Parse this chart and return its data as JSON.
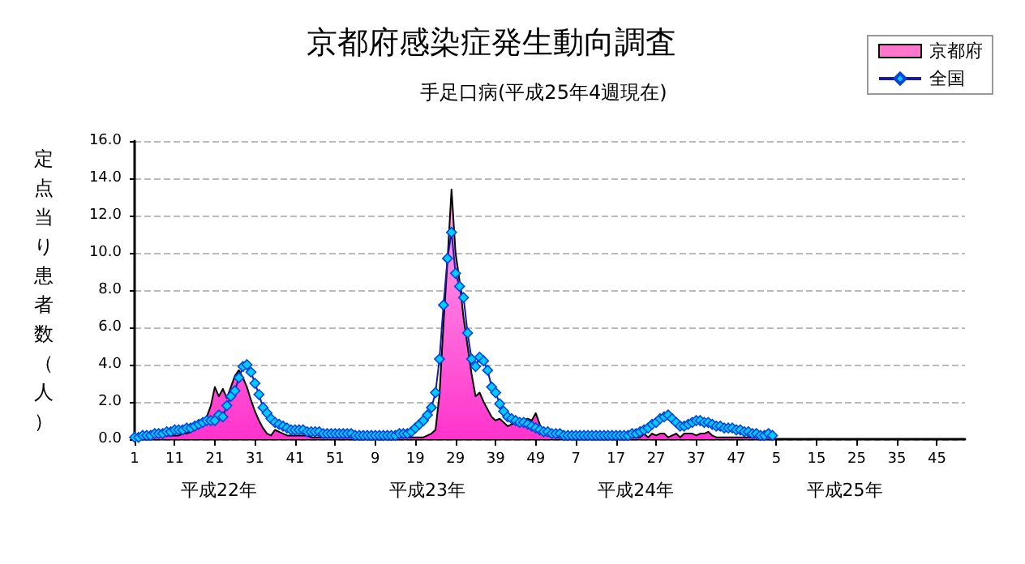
{
  "chart_data": {
    "type": "line",
    "title": "京都府感染症発生動向調査",
    "subtitle": "手足口病(平成25年4週現在)",
    "ylabel": "定点当り患者数（人）",
    "categories": [
      "1",
      null,
      null,
      null,
      null,
      null,
      null,
      null,
      null,
      null,
      "11",
      null,
      null,
      null,
      null,
      null,
      null,
      null,
      null,
      null,
      "21",
      null,
      null,
      null,
      null,
      null,
      null,
      null,
      null,
      null,
      "31",
      null,
      null,
      null,
      null,
      null,
      null,
      null,
      null,
      null,
      "41",
      null,
      null,
      null,
      null,
      null,
      null,
      null,
      null,
      null,
      "51",
      null,
      null,
      null,
      null,
      null,
      null,
      null,
      null,
      null,
      "9",
      null,
      null,
      null,
      null,
      null,
      null,
      null,
      null,
      null,
      "19",
      null,
      null,
      null,
      null,
      null,
      null,
      null,
      null,
      null,
      "29",
      null,
      null,
      null,
      null,
      null,
      null,
      null,
      null,
      null,
      "39",
      null,
      null,
      null,
      null,
      null,
      null,
      null,
      null,
      null,
      "49",
      null,
      null,
      null,
      null,
      null,
      null,
      null,
      null,
      null,
      "7",
      null,
      null,
      null,
      null,
      null,
      null,
      null,
      null,
      null,
      "17",
      null,
      null,
      null,
      null,
      null,
      null,
      null,
      null,
      null,
      "27",
      null,
      null,
      null,
      null,
      null,
      null,
      null,
      null,
      null,
      "37",
      null,
      null,
      null,
      null,
      null,
      null,
      null,
      null,
      null,
      "47",
      null,
      null,
      null,
      null,
      null,
      null,
      null,
      null,
      null,
      "5",
      null,
      null,
      null,
      null,
      null,
      null,
      null,
      null,
      null,
      "15",
      null,
      null,
      null,
      null,
      null,
      null,
      null,
      null,
      null,
      "25",
      null,
      null,
      null,
      null,
      null,
      null,
      null,
      null,
      null,
      "35",
      null,
      null,
      null,
      null,
      null,
      null,
      null,
      null,
      null,
      "45",
      null,
      null,
      null,
      null,
      null,
      null,
      null
    ],
    "annotations": [
      "平成22年",
      "平成23年",
      "平成24年",
      "平成25年"
    ],
    "series": [
      {
        "name": "京都府",
        "type": "area",
        "color": "#ff33cc",
        "marker": "none",
        "values": [
          0.1,
          0.1,
          0.1,
          0.1,
          0.2,
          0.2,
          0.2,
          0.2,
          0.2,
          0.2,
          0.2,
          0.2,
          0.3,
          0.3,
          0.4,
          0.5,
          0.6,
          0.8,
          1.2,
          1.8,
          2.8,
          2.3,
          2.7,
          2.2,
          2.8,
          3.4,
          3.7,
          3.3,
          2.8,
          2.1,
          1.5,
          1.0,
          0.6,
          0.3,
          0.2,
          0.5,
          0.4,
          0.3,
          0.2,
          0.2,
          0.2,
          0.2,
          0.2,
          0.2,
          0.1,
          0.1,
          0.1,
          0.1,
          0.1,
          0.1,
          0.1,
          0.1,
          0.1,
          0.1,
          0.1,
          0.1,
          0.1,
          0.1,
          0.1,
          0.1,
          0.1,
          0.1,
          0.1,
          0.1,
          0.1,
          0.1,
          0.1,
          0.1,
          0.1,
          0.1,
          0.1,
          0.1,
          0.1,
          0.2,
          0.3,
          0.5,
          2.4,
          6.2,
          9.6,
          13.4,
          10.0,
          8.5,
          6.5,
          5.0,
          3.5,
          2.3,
          2.5,
          2.0,
          1.6,
          1.2,
          1.0,
          1.1,
          0.9,
          0.7,
          0.8,
          0.9,
          0.9,
          1.0,
          1.1,
          1.0,
          1.4,
          0.8,
          0.4,
          0.3,
          0.2,
          0.1,
          0.1,
          0.1,
          0.1,
          0.1,
          0.1,
          0.1,
          0.1,
          0.1,
          0.1,
          0.1,
          0.1,
          0.1,
          0.1,
          0.1,
          0.1,
          0.1,
          0.1,
          0.1,
          0.1,
          0.1,
          0.1,
          0.3,
          0.1,
          0.3,
          0.2,
          0.3,
          0.3,
          0.1,
          0.2,
          0.3,
          0.1,
          0.3,
          0.3,
          0.3,
          0.2,
          0.3,
          0.3,
          0.4,
          0.2,
          0.1,
          0.1,
          0.1,
          0.1,
          0.1,
          0.1,
          0.1,
          0.1,
          0.1,
          0.1,
          0.1,
          0.1,
          0.1,
          0.1,
          0.1,
          null,
          null,
          null,
          null,
          null,
          null,
          null,
          null,
          null,
          null,
          null,
          null,
          null,
          null,
          null,
          null,
          null,
          null,
          null,
          null,
          null,
          null,
          null,
          null,
          null,
          null,
          null,
          null,
          null,
          null,
          null,
          null,
          null,
          null,
          null,
          null,
          null,
          null,
          null,
          null,
          null,
          null,
          null,
          null,
          null,
          null,
          null,
          null
        ]
      },
      {
        "name": "全国",
        "color": "#00ccff",
        "marker": "diamond",
        "values": [
          0.1,
          0.1,
          0.2,
          0.2,
          0.2,
          0.3,
          0.3,
          0.3,
          0.4,
          0.4,
          0.5,
          0.5,
          0.5,
          0.6,
          0.6,
          0.7,
          0.8,
          0.9,
          1.0,
          1.0,
          1.0,
          1.3,
          1.2,
          1.8,
          2.3,
          2.6,
          3.3,
          3.9,
          4.0,
          3.6,
          3.0,
          2.4,
          1.7,
          1.4,
          1.1,
          0.9,
          0.8,
          0.7,
          0.6,
          0.5,
          0.5,
          0.5,
          0.5,
          0.4,
          0.4,
          0.4,
          0.4,
          0.3,
          0.3,
          0.3,
          0.3,
          0.3,
          0.3,
          0.3,
          0.3,
          0.2,
          0.2,
          0.2,
          0.2,
          0.2,
          0.2,
          0.2,
          0.2,
          0.2,
          0.2,
          0.2,
          0.3,
          0.3,
          0.3,
          0.4,
          0.6,
          0.8,
          1.0,
          1.3,
          1.7,
          2.5,
          4.3,
          7.2,
          9.7,
          11.1,
          8.9,
          8.2,
          7.6,
          5.7,
          4.3,
          3.9,
          4.4,
          4.2,
          3.7,
          2.8,
          2.5,
          1.9,
          1.5,
          1.2,
          1.1,
          1.0,
          0.9,
          0.9,
          0.8,
          0.7,
          0.6,
          0.5,
          0.4,
          0.4,
          0.3,
          0.3,
          0.3,
          0.2,
          0.2,
          0.2,
          0.2,
          0.2,
          0.2,
          0.2,
          0.2,
          0.2,
          0.2,
          0.2,
          0.2,
          0.2,
          0.2,
          0.2,
          0.2,
          0.2,
          0.3,
          0.3,
          0.4,
          0.5,
          0.6,
          0.8,
          0.9,
          1.1,
          1.2,
          1.3,
          1.1,
          0.9,
          0.7,
          0.7,
          0.8,
          0.9,
          1.0,
          1.0,
          0.9,
          0.9,
          0.8,
          0.7,
          0.7,
          0.6,
          0.6,
          0.6,
          0.5,
          0.5,
          0.4,
          0.4,
          0.3,
          0.3,
          0.2,
          0.2,
          0.3,
          0.2,
          null,
          null,
          null,
          null,
          null,
          null,
          null,
          null,
          null,
          null,
          null,
          null,
          null,
          null,
          null,
          null,
          null,
          null,
          null,
          null,
          null,
          null,
          null,
          null,
          null,
          null,
          null,
          null,
          null,
          null,
          null,
          null,
          null,
          null,
          null,
          null,
          null,
          null,
          null,
          null,
          null,
          null,
          null,
          null,
          null,
          null,
          null,
          null
        ]
      }
    ],
    "ylim": [
      0,
      16
    ],
    "yticks": [
      {
        "value": 0,
        "label": "0.0"
      },
      {
        "value": 2,
        "label": "2.0"
      },
      {
        "value": 4,
        "label": "4.0"
      },
      {
        "value": 6,
        "label": "6.0"
      },
      {
        "value": 8,
        "label": "8.0"
      },
      {
        "value": 10,
        "label": "10.0"
      },
      {
        "value": 12,
        "label": "12.0"
      },
      {
        "value": 14,
        "label": "14.0"
      },
      {
        "value": 16,
        "label": "16.0"
      }
    ],
    "grid": "y",
    "legend": "top right",
    "line_style": "solid"
  }
}
